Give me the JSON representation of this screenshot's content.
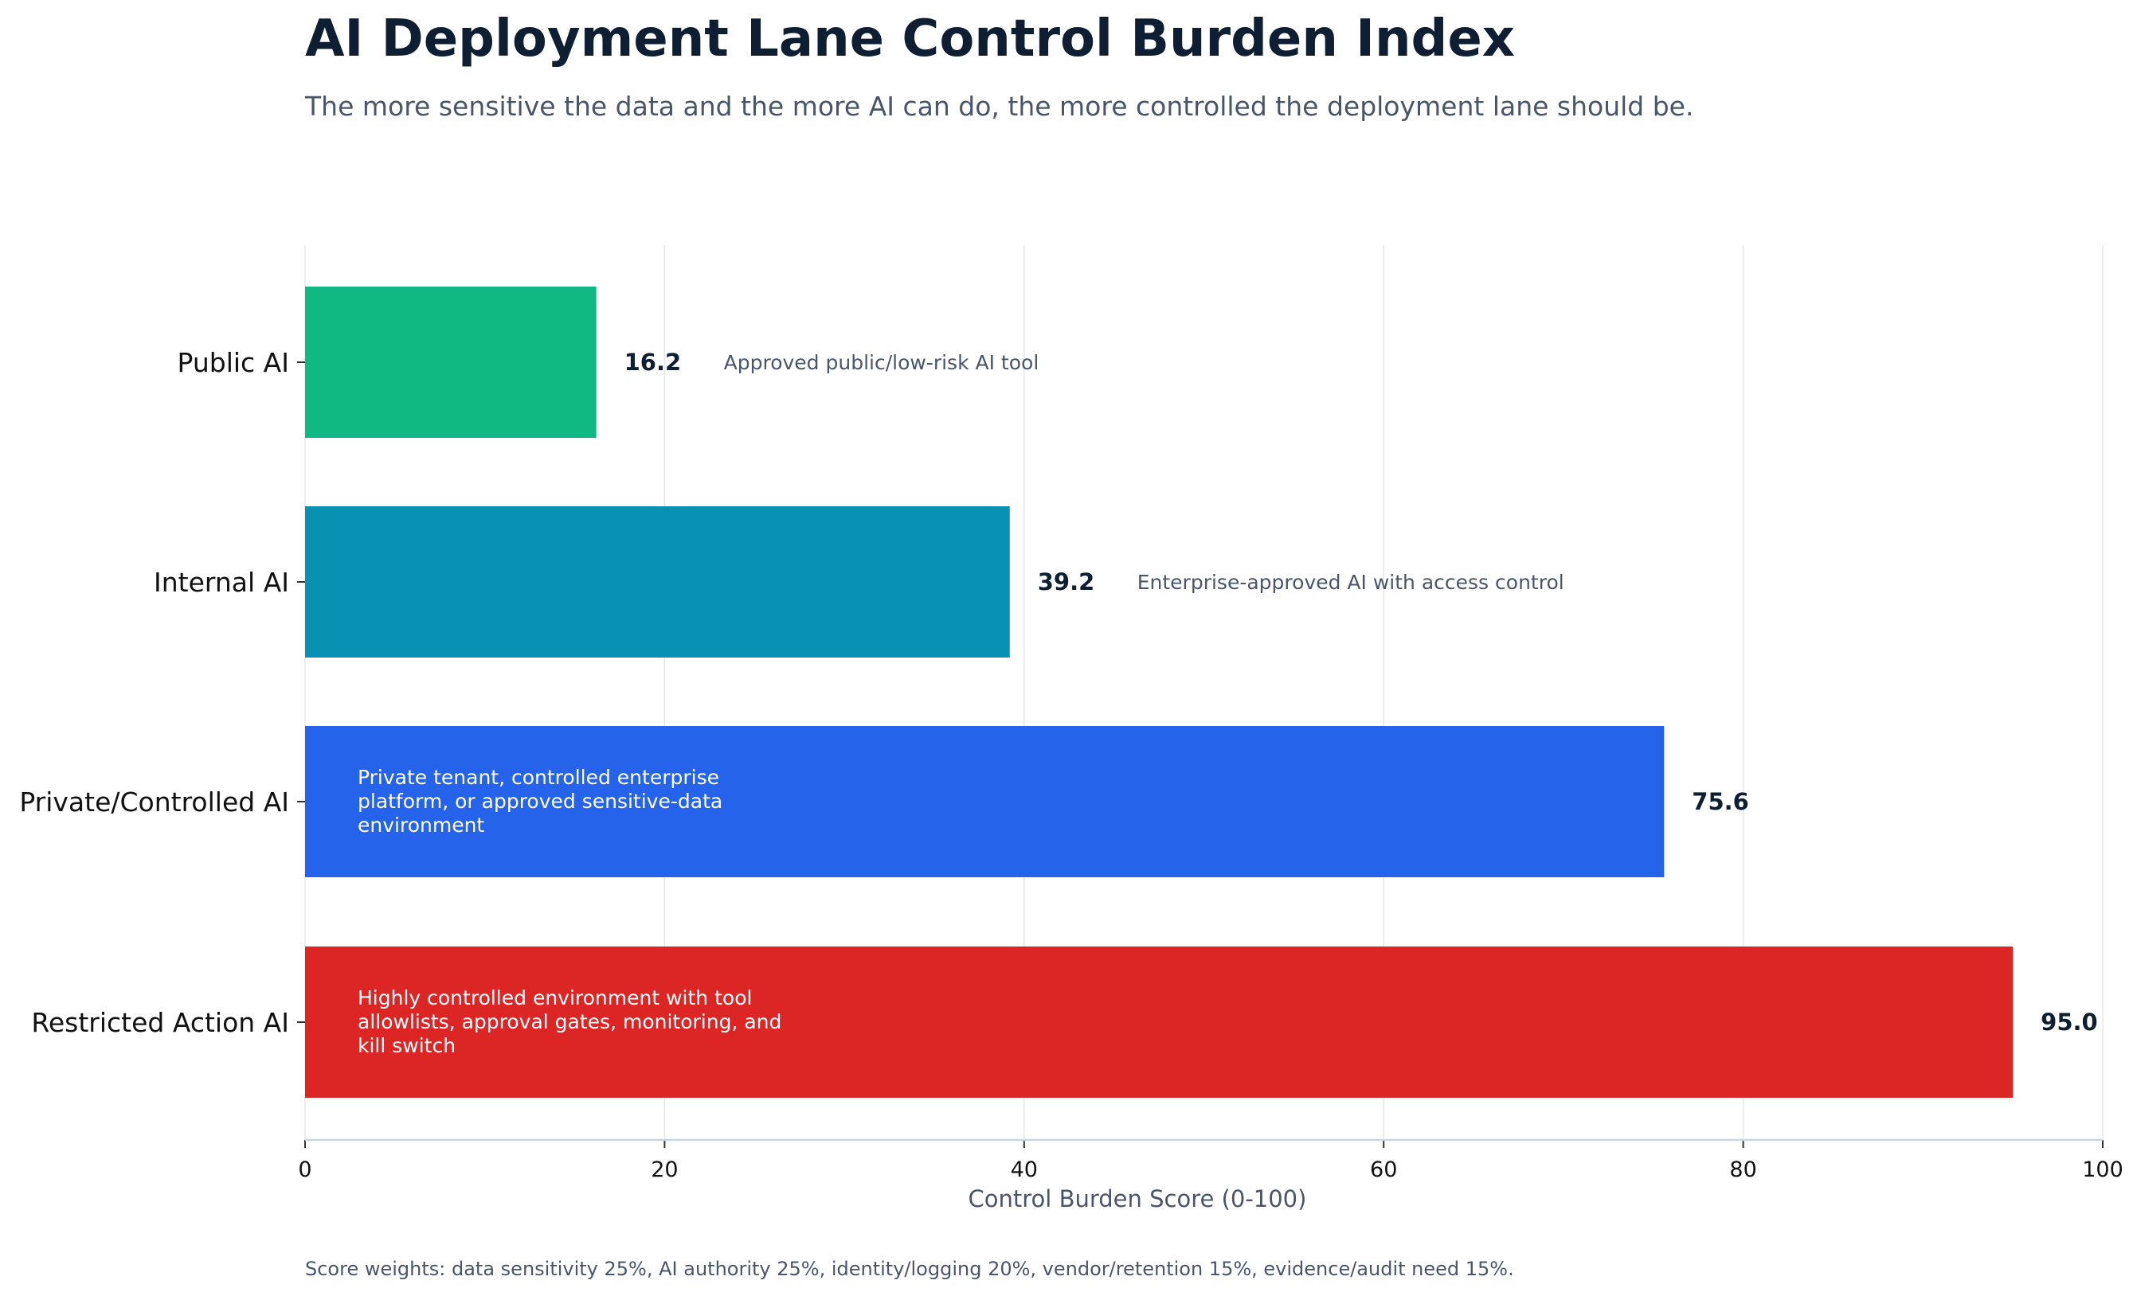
{
  "chart_data": {
    "type": "bar",
    "orientation": "horizontal",
    "title": "AI Deployment Lane Control Burden Index",
    "subtitle": "The more sensitive the data and the more AI can do, the more controlled the deployment lane should be.",
    "xlabel": "Control Burden Score (0-100)",
    "ylabel": "",
    "xlim": [
      0,
      100
    ],
    "xticks": [
      "0",
      "20",
      "40",
      "60",
      "80",
      "100"
    ],
    "grid": "vertical",
    "categories": [
      "Public AI",
      "Internal AI",
      "Private/Controlled AI",
      "Restricted Action AI"
    ],
    "values": [
      16.2,
      39.2,
      75.6,
      95.0
    ],
    "value_labels": [
      "16.2",
      "39.2",
      "75.6",
      "95.0"
    ],
    "colors": [
      "#10b981",
      "#0891b2",
      "#2563eb",
      "#dc2626"
    ],
    "annotations": [
      {
        "placement": "outside",
        "lines": [
          "Approved public/low-risk AI tool"
        ]
      },
      {
        "placement": "outside",
        "lines": [
          "Enterprise-approved AI with access control"
        ]
      },
      {
        "placement": "inside",
        "lines": [
          "Private tenant, controlled enterprise",
          "platform, or approved sensitive-data",
          "environment"
        ]
      },
      {
        "placement": "inside",
        "lines": [
          "Highly controlled environment with tool",
          "allowlists, approval gates, monitoring, and",
          "kill switch"
        ]
      }
    ],
    "footnote": "Score weights: data sensitivity 25%, AI authority 25%, identity/logging 20%, vendor/retention 15%, evidence/audit need 15%."
  }
}
